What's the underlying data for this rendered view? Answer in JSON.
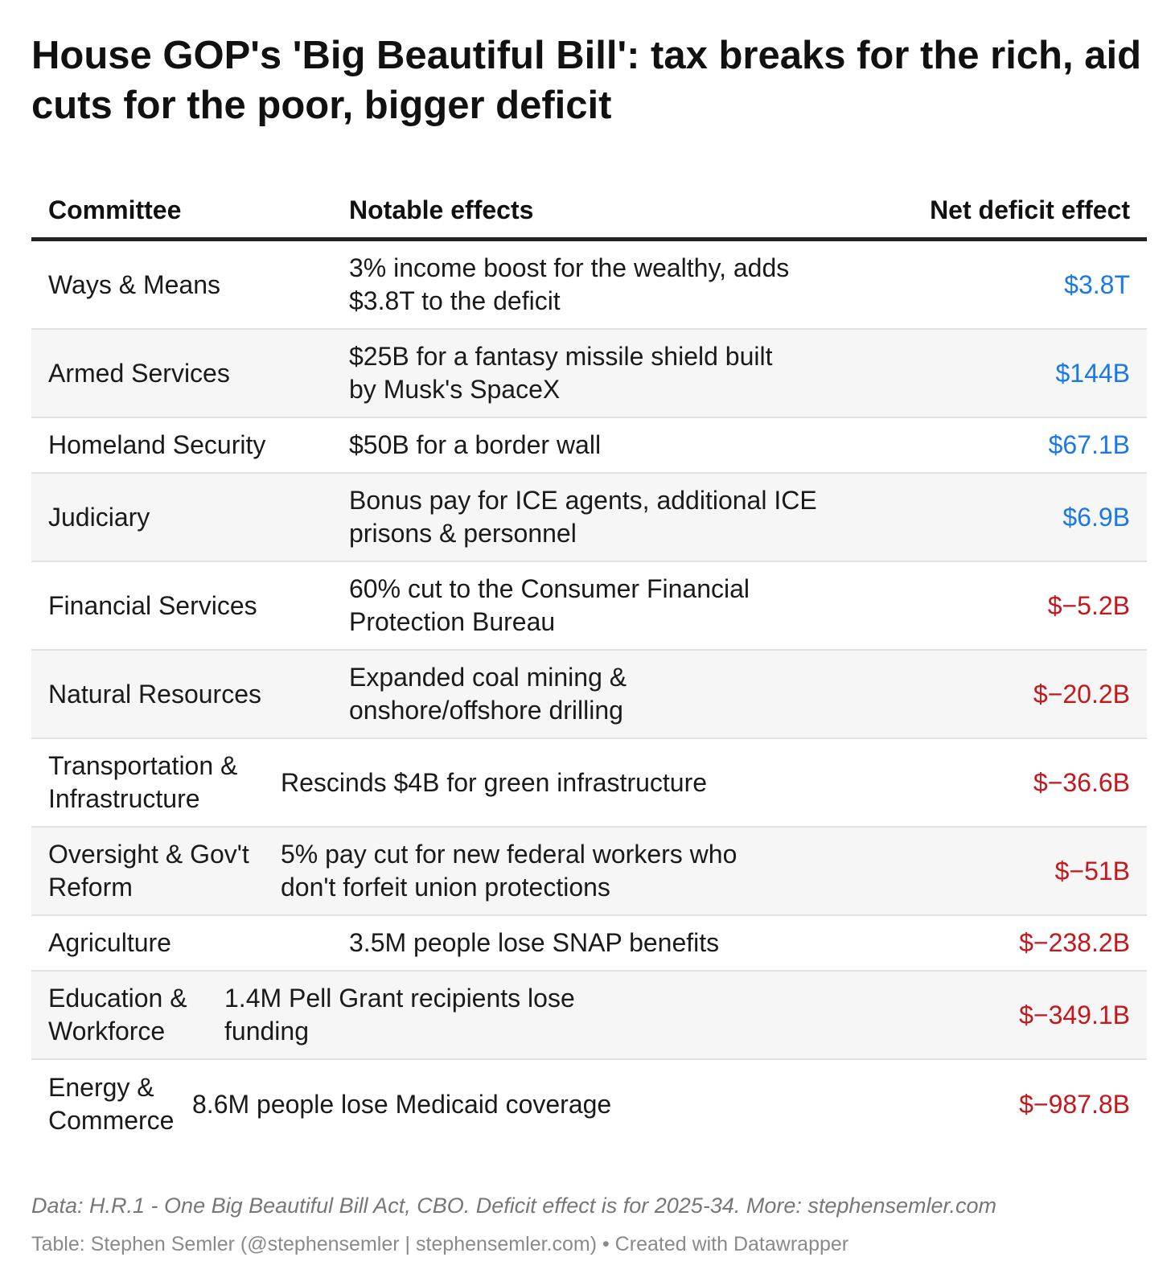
{
  "title": "House GOP's 'Big Beautiful Bill': tax breaks for the rich, aid cuts for the poor, bigger deficit",
  "notes": "Data: H.R.1 - One Big Beautiful Bill Act, CBO. Deficit effect is for 2025-34. More: stephensemler.com",
  "credit": "Table: Stephen Semler (@stephensemler | stephensemler.com) • Created with Datawrapper",
  "colors": {
    "positive": "#1a78e8",
    "negative": "#c5181c"
  },
  "chart_data": {
    "type": "table",
    "columns": [
      "Committee",
      "Notable effects",
      "Net deficit effect"
    ],
    "rows": [
      {
        "committee": "Ways & Means",
        "effect": "3% income boost for the wealthy, adds $3.8T to the deficit",
        "net": "$3.8T",
        "sign": "positive"
      },
      {
        "committee": "Armed Services",
        "effect": "$25B for a fantasy missile shield built by Musk's SpaceX",
        "net": "$144B",
        "sign": "positive"
      },
      {
        "committee": "Homeland Security",
        "effect": "$50B for a border wall",
        "net": "$67.1B",
        "sign": "positive"
      },
      {
        "committee": "Judiciary",
        "effect": "Bonus pay for ICE agents, additional ICE prisons & personnel",
        "net": "$6.9B",
        "sign": "positive"
      },
      {
        "committee": "Financial Services",
        "effect": "60% cut to the Consumer Financial Protection Bureau",
        "net": "$−5.2B",
        "sign": "negative"
      },
      {
        "committee": "Natural Resources",
        "effect": "Expanded coal mining & onshore/offshore drilling",
        "net": "$−20.2B",
        "sign": "negative"
      },
      {
        "committee": "Transportation & Infrastructure",
        "effect": "Rescinds $4B for green infrastructure",
        "net": "$−36.6B",
        "sign": "negative"
      },
      {
        "committee": "Oversight & Gov't Reform",
        "effect": "5% pay cut for new federal workers who don't forfeit union protections",
        "net": "$−51B",
        "sign": "negative"
      },
      {
        "committee": "Agriculture",
        "effect": "3.5M people lose SNAP benefits",
        "net": "$−238.2B",
        "sign": "negative"
      },
      {
        "committee": "Education & Workforce",
        "effect": "1.4M Pell Grant recipients lose funding",
        "net": "$−349.1B",
        "sign": "negative"
      },
      {
        "committee": "Energy & Commerce",
        "effect": "8.6M people lose Medicaid coverage",
        "net": "$−987.8B",
        "sign": "negative"
      }
    ]
  }
}
